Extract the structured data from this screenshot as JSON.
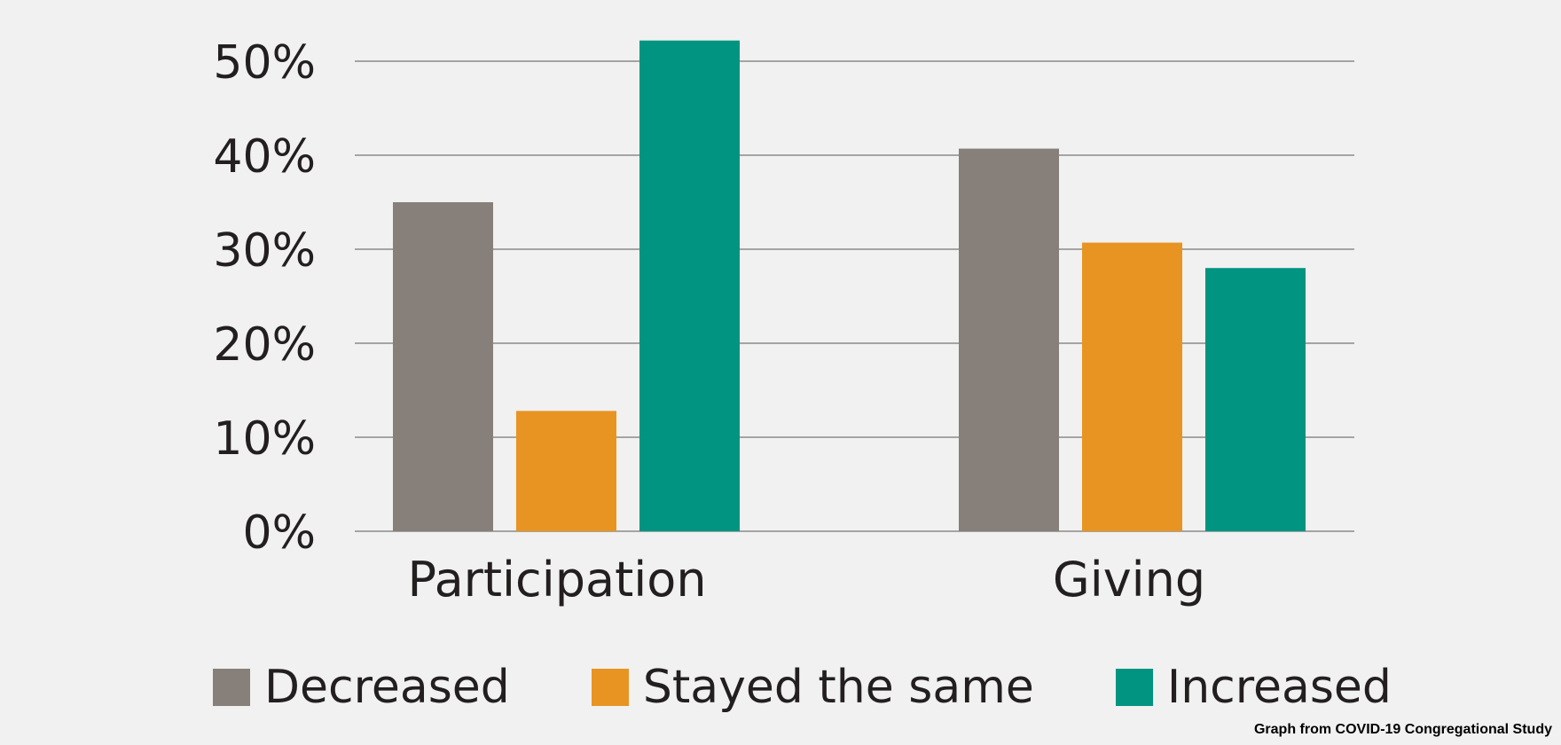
{
  "chart_data": {
    "type": "bar",
    "categories": [
      "Participation",
      "Giving"
    ],
    "series": [
      {
        "name": "Decreased",
        "values": [
          35,
          40.7
        ],
        "color": "#877f79"
      },
      {
        "name": "Stayed the same",
        "values": [
          12.8,
          30.7
        ],
        "color": "#e89423"
      },
      {
        "name": "Increased",
        "values": [
          52.2,
          28
        ],
        "color": "#009481"
      }
    ],
    "yticks": [
      "0%",
      "10%",
      "20%",
      "30%",
      "40%",
      "50%"
    ],
    "ylim": [
      0,
      50
    ],
    "grid": true,
    "legend": "bottom",
    "title": "",
    "xlabel": "",
    "ylabel": ""
  },
  "credit": "Graph from COVID-19 Congregational Study"
}
